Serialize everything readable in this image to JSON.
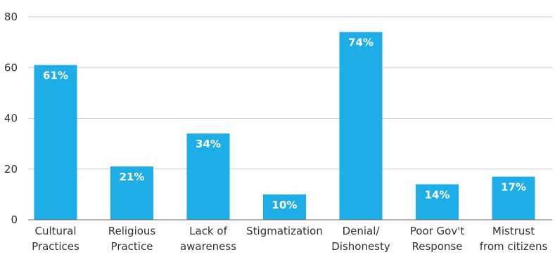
{
  "chart_data": {
    "type": "bar",
    "title": "",
    "xlabel": "",
    "ylabel": "",
    "ylim": [
      0,
      80
    ],
    "yticks": [
      0,
      20,
      40,
      60,
      80
    ],
    "grid": true,
    "bar_color": "#1eaee7",
    "categories": [
      [
        "Cultural",
        "Practices"
      ],
      [
        "Religious",
        "Practice"
      ],
      [
        "Lack of",
        "awareness"
      ],
      [
        "Stigmatization"
      ],
      [
        "Denial/",
        "Dishonesty"
      ],
      [
        "Poor Gov't",
        "Response"
      ],
      [
        "Mistrust",
        "from citizens"
      ]
    ],
    "values": [
      61,
      21,
      34,
      10,
      74,
      14,
      17
    ],
    "data_labels": [
      "61%",
      "21%",
      "34%",
      "10%",
      "74%",
      "14%",
      "17%"
    ]
  }
}
